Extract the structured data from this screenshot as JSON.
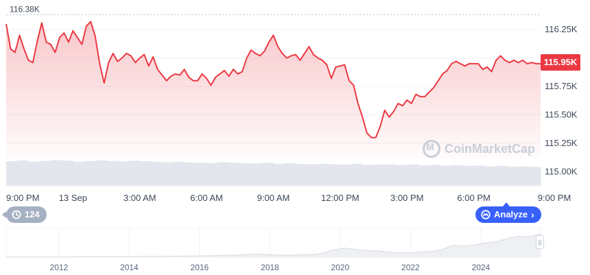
{
  "chart_data": {
    "type": "line",
    "title": "",
    "xlabel": "",
    "ylabel": "",
    "ylim": [
      114.875,
      116.45
    ],
    "y_unit": "K",
    "y_ticks": [
      115.0,
      115.25,
      115.5,
      115.75,
      116.0,
      116.25
    ],
    "y_tick_labels": [
      "115.00K",
      "115.25K",
      "115.50K",
      "115.75K",
      "116.00K",
      "116.25K"
    ],
    "x_tick_labels": [
      "9:00 PM",
      "13 Sep",
      "3:00 AM",
      "6:00 AM",
      "9:00 AM",
      "12:00 PM",
      "3:00 PM",
      "6:00 PM",
      "9:00 PM"
    ],
    "x_hours": [
      0,
      24
    ],
    "series": [
      {
        "x": [
          0.0,
          0.2,
          0.4,
          0.6,
          0.8,
          1.0,
          1.2,
          1.4,
          1.6,
          1.8,
          2.0,
          2.2,
          2.4,
          2.6,
          2.8,
          3.0,
          3.2,
          3.4,
          3.6,
          3.8,
          4.0,
          4.2,
          4.4,
          4.6,
          4.8,
          5.0,
          5.2,
          5.4,
          5.6,
          5.8,
          6.0,
          6.2,
          6.4,
          6.6,
          6.8,
          7.0,
          7.2,
          7.4,
          7.6,
          7.8,
          8.0,
          8.2,
          8.4,
          8.6,
          8.8,
          9.0,
          9.2,
          9.4,
          9.6,
          9.8,
          10.0,
          10.2,
          10.4,
          10.6,
          10.8,
          11.0,
          11.2,
          11.4,
          11.6,
          11.8,
          12.0,
          12.2,
          12.4,
          12.6,
          12.8,
          13.0,
          13.2,
          13.4,
          13.6,
          13.8,
          14.0,
          14.2,
          14.4,
          14.6,
          14.8,
          15.0,
          15.2,
          15.4,
          15.6,
          15.8,
          16.0,
          16.2,
          16.4,
          16.6,
          16.8,
          17.0,
          17.2,
          17.4,
          17.6,
          17.8,
          18.0,
          18.2,
          18.4,
          18.6,
          18.8,
          19.0,
          19.2,
          19.4,
          19.6,
          19.8,
          20.0,
          20.2,
          20.4,
          20.6,
          20.8,
          21.0,
          21.2,
          21.4,
          21.6,
          21.8,
          22.0,
          22.2,
          22.4,
          22.6,
          22.8,
          23.0,
          23.2,
          23.4,
          23.6,
          23.8,
          24.0
        ],
        "values": [
          116.3,
          116.08,
          116.05,
          116.2,
          116.08,
          115.98,
          115.96,
          116.15,
          116.31,
          116.14,
          116.12,
          116.05,
          116.18,
          116.22,
          116.14,
          116.24,
          116.18,
          116.12,
          116.28,
          116.32,
          116.19,
          115.95,
          115.78,
          115.96,
          116.04,
          115.97,
          116.0,
          116.04,
          116.02,
          115.96,
          116.0,
          116.03,
          115.93,
          116.01,
          115.9,
          115.85,
          115.8,
          115.84,
          115.86,
          115.85,
          115.9,
          115.83,
          115.8,
          115.8,
          115.86,
          115.82,
          115.76,
          115.83,
          115.86,
          115.89,
          115.84,
          115.9,
          115.86,
          115.88,
          116.0,
          116.07,
          116.04,
          116.02,
          116.06,
          116.14,
          116.2,
          116.1,
          116.04,
          116.0,
          116.02,
          116.03,
          115.98,
          116.04,
          116.1,
          116.03,
          116.0,
          115.98,
          115.94,
          115.82,
          115.92,
          115.93,
          115.94,
          115.8,
          115.76,
          115.6,
          115.48,
          115.34,
          115.3,
          115.3,
          115.4,
          115.54,
          115.48,
          115.53,
          115.6,
          115.58,
          115.63,
          115.6,
          115.68,
          115.66,
          115.66,
          115.7,
          115.74,
          115.8,
          115.86,
          115.89,
          115.95,
          115.97,
          115.95,
          115.93,
          115.95,
          115.95,
          115.95,
          115.9,
          115.92,
          115.88,
          115.98,
          116.02,
          115.98,
          115.96,
          115.98,
          115.96,
          115.98,
          115.95,
          115.96,
          115.95,
          115.95
        ]
      }
    ],
    "max_label": "116.38K",
    "max_value": 116.38,
    "current_label": "115.95K",
    "current_value": 115.95,
    "colors": {
      "line": "#ea3943",
      "fill_top": "#ea3943",
      "grid": "#eff2f5",
      "volume": "#e3e6ec",
      "navigator_line": "#d7dbe2",
      "navigator_fill": "#eef0f3"
    },
    "volume_levels": [
      0.92,
      0.95,
      0.9,
      0.93,
      0.96,
      0.94,
      0.9,
      0.92,
      0.95,
      0.93,
      0.91,
      0.94,
      0.92,
      0.9,
      0.88,
      0.9,
      0.87,
      0.86,
      0.85,
      0.88,
      0.86,
      0.84,
      0.83,
      0.86,
      0.82,
      0.84,
      0.81,
      0.8,
      0.82,
      0.8,
      0.79,
      0.82,
      0.78,
      0.8,
      0.79,
      0.77,
      0.8,
      0.76,
      0.78,
      0.75,
      0.77,
      0.74,
      0.75,
      0.72,
      0.74,
      0.71,
      0.72,
      0.7
    ],
    "navigator": {
      "x_labels": [
        "2012",
        "2014",
        "2016",
        "2018",
        "2020",
        "2022",
        "2024"
      ],
      "x_years": [
        2012,
        2014,
        2016,
        2018,
        2020,
        2022,
        2024
      ],
      "year_range": [
        2010.5,
        2025.7
      ],
      "levels": [
        0.01,
        0.01,
        0.01,
        0.01,
        0.01,
        0.01,
        0.01,
        0.02,
        0.02,
        0.02,
        0.02,
        0.02,
        0.03,
        0.03,
        0.03,
        0.04,
        0.04,
        0.05,
        0.05,
        0.06,
        0.07,
        0.08,
        0.1,
        0.12,
        0.1,
        0.08,
        0.08,
        0.09,
        0.1,
        0.15,
        0.28,
        0.35,
        0.3,
        0.26,
        0.25,
        0.2,
        0.16,
        0.17,
        0.2,
        0.22,
        0.3,
        0.46,
        0.42,
        0.47,
        0.55,
        0.6,
        0.72,
        0.8,
        0.78,
        0.9
      ]
    }
  },
  "badges": {
    "history_count": "124",
    "analyze_label": "Analyze",
    "watermark": "CoinMarketCap"
  }
}
